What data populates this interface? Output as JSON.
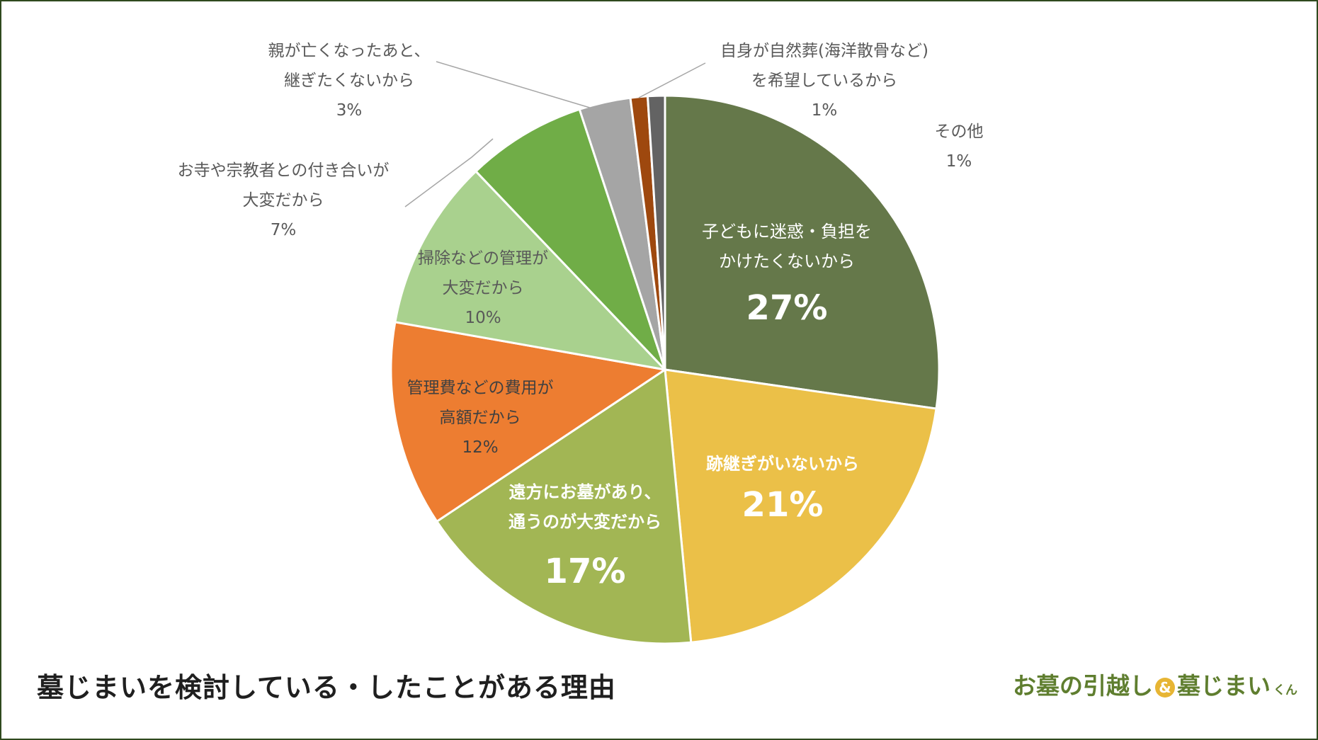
{
  "chart_data": {
    "type": "pie",
    "title": "墓じまいを検討している・したことがある理由",
    "start_angle_deg": 0,
    "direction": "clockwise",
    "slices": [
      {
        "label_lines": [
          "子どもに迷惑・負担を",
          "かけたくないから"
        ],
        "value": 27,
        "value_label": "27%",
        "color": "#65784a",
        "label_style": "inside-big"
      },
      {
        "label_lines": [
          "跡継ぎがいないから"
        ],
        "value": 21,
        "value_label": "21%",
        "color": "#ebc048",
        "label_style": "inside-big"
      },
      {
        "label_lines": [
          "遠方にお墓があり、",
          "通うのが大変だから"
        ],
        "value": 17,
        "value_label": "17%",
        "color": "#a2b654",
        "label_style": "inside-big"
      },
      {
        "label_lines": [
          "管理費などの費用が",
          "高額だから"
        ],
        "value": 12,
        "value_label": "12%",
        "color": "#ed7d31",
        "label_style": "inside"
      },
      {
        "label_lines": [
          "掃除などの管理が",
          "大変だから"
        ],
        "value": 10,
        "value_label": "10%",
        "color": "#a9d18e",
        "label_style": "inside"
      },
      {
        "label_lines": [
          "お寺や宗教者との付き合いが",
          "大変だから"
        ],
        "value": 7,
        "value_label": "7%",
        "color": "#70ad47",
        "label_style": "outside"
      },
      {
        "label_lines": [
          "親が亡くなったあと、",
          "継ぎたくないから"
        ],
        "value": 3,
        "value_label": "3%",
        "color": "#a5a5a5",
        "label_style": "outside"
      },
      {
        "label_lines": [
          "自身が自然葬(海洋散骨など)",
          "を希望しているから"
        ],
        "value": 1,
        "value_label": "1%",
        "color": "#9e480e",
        "label_style": "outside"
      },
      {
        "label_lines": [
          "その他"
        ],
        "value": 1,
        "value_label": "1%",
        "color": "#636363",
        "label_style": "outside"
      }
    ]
  },
  "logo": {
    "part1": "お墓の引越し",
    "amp": "&",
    "part2": "墓じまい",
    "suffix": "くん"
  }
}
